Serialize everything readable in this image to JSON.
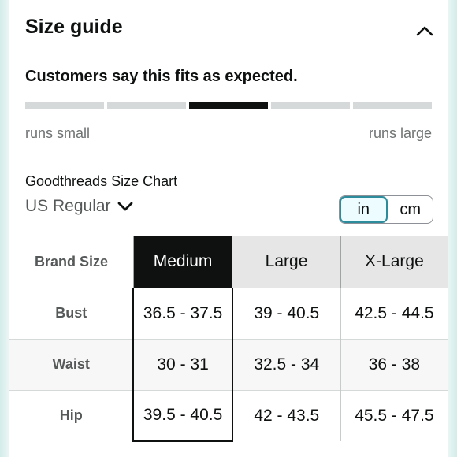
{
  "header": {
    "title": "Size guide",
    "collapse_icon": "chevron-up-icon"
  },
  "fit": {
    "summary": "Customers say this fits as expected.",
    "segments": 5,
    "active_segment": 3,
    "left_label": "runs small",
    "right_label": "runs large"
  },
  "chart": {
    "name": "Goodthreads Size Chart",
    "region": "US Regular",
    "region_icon": "chevron-down-icon",
    "units": [
      {
        "label": "in",
        "selected": true
      },
      {
        "label": "cm",
        "selected": false
      }
    ]
  },
  "table": {
    "corner_label": "Brand Size",
    "columns": [
      "Medium",
      "Large",
      "X-Large"
    ],
    "selected_column": "Medium",
    "rows": [
      {
        "label": "Bust",
        "values": [
          "36.5 - 37.5",
          "39 - 40.5",
          "42.5 - 44.5"
        ]
      },
      {
        "label": "Waist",
        "values": [
          "30 - 31",
          "32.5 - 34",
          "36 - 38"
        ]
      },
      {
        "label": "Hip",
        "values": [
          "39.5 - 40.5",
          "42 - 43.5",
          "45.5 - 47.5"
        ]
      }
    ]
  },
  "colors": {
    "accent": "#2c8c9c",
    "selected_header": "#0f1111",
    "fit_active": "#0f1111",
    "fit_inactive": "#d5d9d9"
  }
}
